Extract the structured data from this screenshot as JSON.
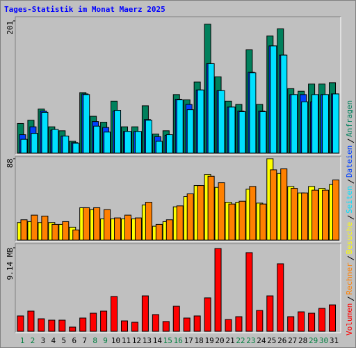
{
  "chart_data": [
    {
      "type": "bar",
      "title": "Tages-Statistik im Monat Maerz 2025",
      "ylim": [
        0,
        201
      ],
      "yticks": [
        201
      ],
      "series": [
        {
          "name": "Anfragen",
          "color": "#00805c",
          "values": [
            45,
            50,
            67,
            40,
            34,
            18,
            92,
            56,
            47,
            79,
            40,
            40,
            72,
            29,
            34,
            89,
            81,
            108,
            196,
            116,
            79,
            74,
            157,
            74,
            178,
            189,
            98,
            94,
            105,
            105,
            107
          ]
        },
        {
          "name": "Dateien",
          "color": "#0040ff",
          "values": [
            28,
            40,
            64,
            35,
            26,
            16,
            90,
            48,
            39,
            64,
            33,
            33,
            51,
            25,
            27,
            82,
            74,
            96,
            136,
            95,
            70,
            64,
            123,
            64,
            163,
            149,
            89,
            89,
            78,
            89,
            90
          ]
        },
        {
          "name": "Seiten",
          "color": "#00e0ff",
          "values": [
            21,
            30,
            62,
            36,
            26,
            15,
            89,
            41,
            32,
            65,
            33,
            33,
            50,
            18,
            28,
            81,
            66,
            96,
            136,
            95,
            70,
            63,
            122,
            63,
            163,
            149,
            89,
            78,
            89,
            89,
            90
          ]
        }
      ]
    },
    {
      "type": "bar",
      "ylim": [
        0,
        88
      ],
      "yticks": [
        88
      ],
      "series": [
        {
          "name": "Besuche",
          "color": "#ffff00",
          "values": [
            19,
            20,
            19,
            19,
            17,
            14,
            35,
            33,
            23,
            23,
            23,
            23,
            38,
            15,
            20,
            36,
            47,
            59,
            71,
            57,
            41,
            41,
            55,
            40,
            88,
            72,
            58,
            51,
            58,
            56,
            60
          ]
        },
        {
          "name": "Rechner",
          "color": "#ff8000",
          "values": [
            22,
            27,
            26,
            17,
            20,
            11,
            35,
            35,
            33,
            24,
            27,
            24,
            41,
            17,
            22,
            37,
            50,
            59,
            69,
            62,
            39,
            42,
            58,
            39,
            76,
            77,
            56,
            51,
            54,
            54,
            65
          ]
        }
      ]
    },
    {
      "type": "bar",
      "ylim": [
        0,
        9.14
      ],
      "yticks": [
        {
          "value": 9.14,
          "label": "9.14 MB"
        }
      ],
      "categories": [
        "1",
        "2",
        "3",
        "4",
        "5",
        "6",
        "7",
        "8",
        "9",
        "10",
        "11",
        "12",
        "13",
        "14",
        "15",
        "16",
        "17",
        "18",
        "19",
        "20",
        "21",
        "22",
        "23",
        "24",
        "25",
        "26",
        "27",
        "28",
        "29",
        "30",
        "31"
      ],
      "category_colors": [
        "#008040",
        "#008040",
        "#000000",
        "#000000",
        "#000000",
        "#000000",
        "#000000",
        "#008040",
        "#008040",
        "#000000",
        "#000000",
        "#000000",
        "#000000",
        "#000000",
        "#008040",
        "#008040",
        "#000000",
        "#000000",
        "#000000",
        "#000000",
        "#000000",
        "#008040",
        "#008040",
        "#000000",
        "#000000",
        "#000000",
        "#000000",
        "#000000",
        "#008040",
        "#008040",
        "#000000"
      ],
      "series": [
        {
          "name": "Volumen",
          "color": "#ff0000",
          "values": [
            1.68,
            2.21,
            1.37,
            1.22,
            1.22,
            0.46,
            1.45,
            1.98,
            2.21,
            3.81,
            1.14,
            0.99,
            3.88,
            1.83,
            1.07,
            2.74,
            1.45,
            1.68,
            3.66,
            9.06,
            1.29,
            1.6,
            8.61,
            2.28,
            3.88,
            7.39,
            1.6,
            2.13,
            1.98,
            2.51,
            2.89
          ]
        }
      ]
    }
  ]
}
